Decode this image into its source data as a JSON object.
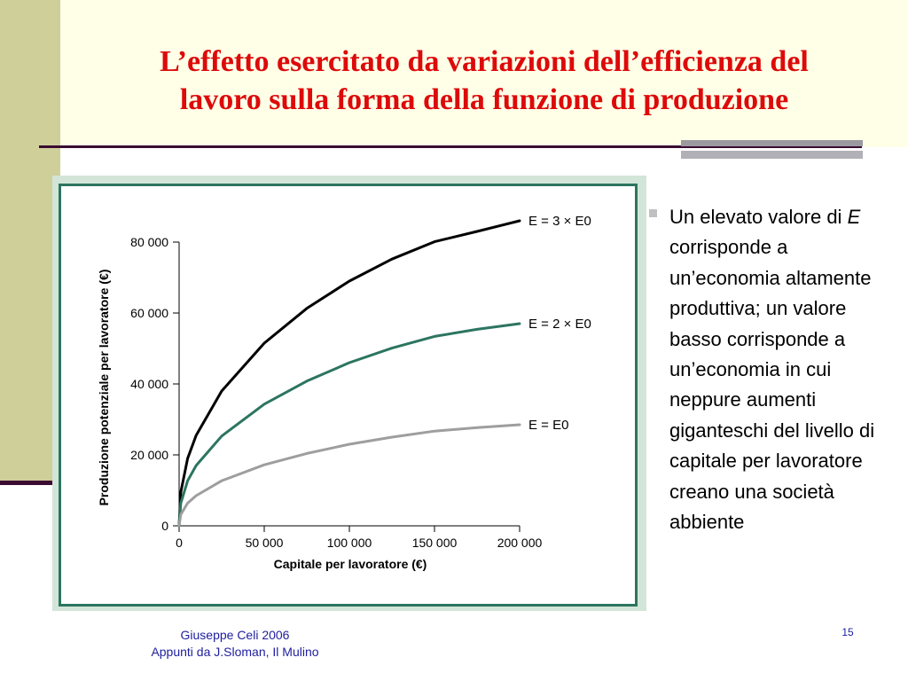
{
  "slide": {
    "title_line1": "L’effetto esercitato da variazioni dell’efficienza del",
    "title_line2": "lavoro sulla forma della funzione di produzione",
    "body_before": "Un elevato valore di ",
    "body_italic": "E",
    "body_after": " corrisponde a un’economia altamente produttiva; un valore basso corrisponde a un’economia in cui neppure aumenti giganteschi del livello di capitale per lavoratore creano una società abbiente",
    "footer_line1": "Giuseppe Celi 2006",
    "footer_line2": "Appunti da J.Sloman, Il Mulino",
    "slide_number": "15"
  },
  "colors": {
    "title": "#dd0a0a",
    "background_band": "#cfcf99",
    "rule": "#3b0b32",
    "chart_border": "#2c7560",
    "chart_frame": "#d3e5d8",
    "footer_text": "#2020a0"
  },
  "chart_data": {
    "type": "line",
    "xlabel": "Capitale per lavoratore (€)",
    "ylabel": "Produzione potenziale per lavoratore (€)",
    "xlim": [
      0,
      200000
    ],
    "ylim": [
      0,
      80000
    ],
    "xticks": [
      0,
      50000,
      100000,
      150000,
      200000
    ],
    "xtick_labels": [
      "0",
      "50 000",
      "100 000",
      "150 000",
      "200 000"
    ],
    "yticks": [
      0,
      20000,
      40000,
      60000,
      80000
    ],
    "ytick_labels": [
      "0",
      "20 000",
      "40 000",
      "60 000",
      "80 000"
    ],
    "grid": false,
    "series": [
      {
        "name": "E = 3 × E0",
        "color": "#000000",
        "x": [
          0,
          1000,
          5000,
          10000,
          25000,
          50000,
          75000,
          100000,
          125000,
          150000,
          175000,
          200000
        ],
        "y": [
          0,
          9500,
          19000,
          25500,
          38000,
          51500,
          61300,
          69000,
          75200,
          80100,
          83000,
          86000
        ]
      },
      {
        "name": "E = 2 × E0",
        "color": "#2c7560",
        "x": [
          0,
          1000,
          5000,
          10000,
          25000,
          50000,
          75000,
          100000,
          125000,
          150000,
          175000,
          200000
        ],
        "y": [
          0,
          6400,
          12700,
          17000,
          25300,
          34300,
          40800,
          46000,
          50100,
          53400,
          55400,
          57000
        ]
      },
      {
        "name": "E = E0",
        "color": "#9e9e9e",
        "x": [
          0,
          1000,
          5000,
          10000,
          25000,
          50000,
          75000,
          100000,
          125000,
          150000,
          175000,
          200000
        ],
        "y": [
          0,
          3200,
          6400,
          8500,
          12700,
          17200,
          20400,
          23000,
          25000,
          26700,
          27700,
          28500
        ]
      }
    ]
  }
}
